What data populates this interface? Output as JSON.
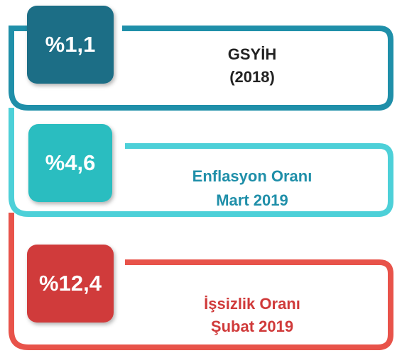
{
  "items": [
    {
      "value": "%1,1",
      "label": [
        "GSYİH",
        "(2018)"
      ]
    },
    {
      "value": "%4,6",
      "label": [
        "Enflasyon Oranı",
        "Mart 2019"
      ]
    },
    {
      "value": "%12,4",
      "label": [
        "İşsizlik Oranı",
        "Şubat 2019"
      ]
    }
  ]
}
